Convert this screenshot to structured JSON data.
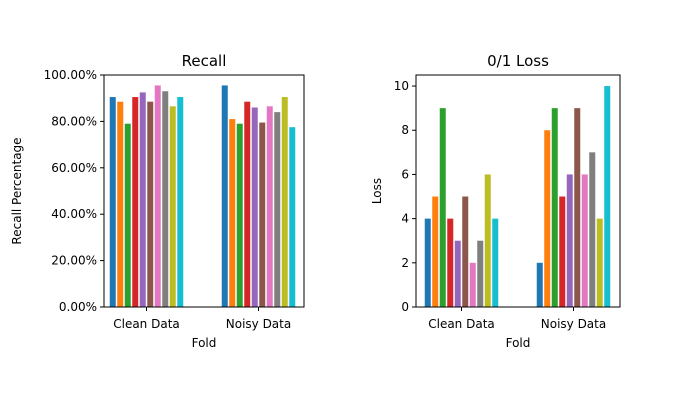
{
  "chart_data": [
    {
      "type": "bar",
      "title": "Recall",
      "xlabel": "Fold",
      "ylabel": "Recall Percentage",
      "categories": [
        "Clean Data",
        "Noisy Data"
      ],
      "ylim": [
        0,
        1
      ],
      "yticks": [
        0,
        0.2,
        0.4,
        0.6,
        0.8,
        1.0
      ],
      "ytick_labels": [
        "0.00%",
        "20.00%",
        "40.00%",
        "60.00%",
        "80.00%",
        "100.00%"
      ],
      "grid": false,
      "series": [
        {
          "color": "#1f77b4",
          "values": [
            0.905,
            0.955
          ]
        },
        {
          "color": "#ff7f0e",
          "values": [
            0.885,
            0.81
          ]
        },
        {
          "color": "#2ca02c",
          "values": [
            0.79,
            0.79
          ]
        },
        {
          "color": "#d62728",
          "values": [
            0.905,
            0.885
          ]
        },
        {
          "color": "#9467bd",
          "values": [
            0.925,
            0.86
          ]
        },
        {
          "color": "#8c564b",
          "values": [
            0.885,
            0.795
          ]
        },
        {
          "color": "#e377c2",
          "values": [
            0.955,
            0.865
          ]
        },
        {
          "color": "#7f7f7f",
          "values": [
            0.93,
            0.84
          ]
        },
        {
          "color": "#bcbd22",
          "values": [
            0.865,
            0.905
          ]
        },
        {
          "color": "#17becf",
          "values": [
            0.905,
            0.775
          ]
        }
      ]
    },
    {
      "type": "bar",
      "title": "0/1 Loss",
      "xlabel": "Fold",
      "ylabel": "Loss",
      "categories": [
        "Clean Data",
        "Noisy Data"
      ],
      "ylim": [
        0,
        10.5
      ],
      "yticks": [
        0,
        2,
        4,
        6,
        8,
        10
      ],
      "ytick_labels": [
        "0",
        "2",
        "4",
        "6",
        "8",
        "10"
      ],
      "grid": false,
      "series": [
        {
          "color": "#1f77b4",
          "values": [
            4,
            2
          ]
        },
        {
          "color": "#ff7f0e",
          "values": [
            5,
            8
          ]
        },
        {
          "color": "#2ca02c",
          "values": [
            9,
            9
          ]
        },
        {
          "color": "#d62728",
          "values": [
            4,
            5
          ]
        },
        {
          "color": "#9467bd",
          "values": [
            3,
            6
          ]
        },
        {
          "color": "#8c564b",
          "values": [
            5,
            9
          ]
        },
        {
          "color": "#e377c2",
          "values": [
            2,
            6
          ]
        },
        {
          "color": "#7f7f7f",
          "values": [
            3,
            7
          ]
        },
        {
          "color": "#bcbd22",
          "values": [
            6,
            4
          ]
        },
        {
          "color": "#17becf",
          "values": [
            4,
            10
          ]
        }
      ]
    }
  ]
}
